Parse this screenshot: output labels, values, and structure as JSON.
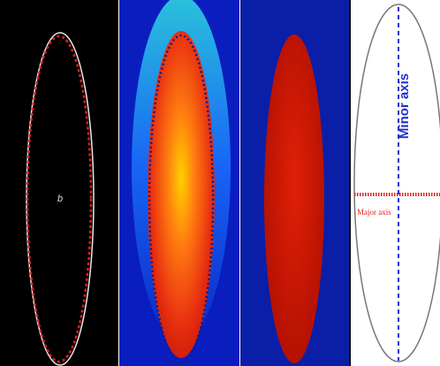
{
  "figure": {
    "panel_1_label": "b",
    "minor_axis_label": "Minor axis",
    "major_axis_label": "Major axis"
  }
}
